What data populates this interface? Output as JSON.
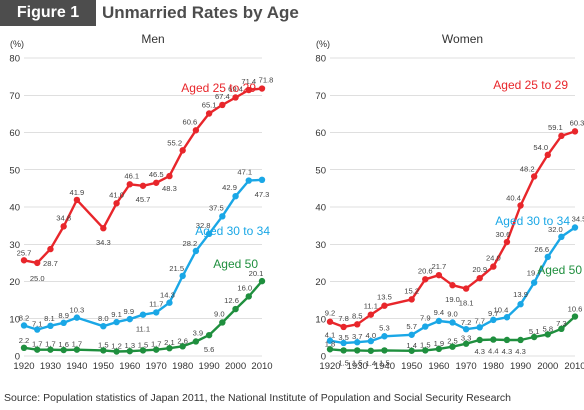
{
  "header": {
    "figure_label": "Figure 1",
    "title": "Unmarried Rates by Age"
  },
  "source": "Source: Population statistics of Japan 2011, the National Institute of  Population and Social Security Research",
  "colors": {
    "red": "#e8262b",
    "blue": "#1aa7e6",
    "green": "#1f8f3e",
    "grid": "#bfbfbf",
    "text": "#333333"
  },
  "chart_data": [
    {
      "type": "line",
      "title": "Men",
      "ylabel": "(%)",
      "ylim": [
        0,
        80
      ],
      "yticks": [
        "0",
        "10",
        "20",
        "30",
        "40",
        "50",
        "60",
        "70",
        "80"
      ],
      "xlim": [
        1920,
        2010
      ],
      "xticks": [
        "1920",
        "1930",
        "1940",
        "1950",
        "1960",
        "1970",
        "1980",
        "1990",
        "2000",
        "2010"
      ],
      "grid": "horizontal",
      "x": [
        1920,
        1925,
        1930,
        1935,
        1940,
        1950,
        1955,
        1960,
        1965,
        1970,
        1975,
        1980,
        1985,
        1990,
        1995,
        2000,
        2005,
        2010
      ],
      "series": [
        {
          "name": "Aged 25 to 29",
          "color": "red",
          "values": [
            25.7,
            25.0,
            28.7,
            34.8,
            41.9,
            34.3,
            41.0,
            46.1,
            45.7,
            46.5,
            48.3,
            55.2,
            60.6,
            65.1,
            67.4,
            69.4,
            71.4,
            71.8
          ],
          "labels": [
            "25.7",
            "25.0",
            "28.7",
            "34.8",
            "41.9",
            "34.3",
            "41.0",
            "46.1",
            "45.7",
            "46.5",
            "48.3",
            "55.2",
            "60.6",
            "65.1",
            "67.4",
            "69.4",
            "71.4",
            "71.8"
          ]
        },
        {
          "name": "Aged 30 to 34",
          "color": "blue",
          "values": [
            8.2,
            7.1,
            8.1,
            8.9,
            10.3,
            8.0,
            9.1,
            9.9,
            11.1,
            11.7,
            14.3,
            21.5,
            28.2,
            32.8,
            37.5,
            42.9,
            47.1,
            47.3
          ],
          "labels": [
            "8.2",
            "7.1",
            "8.1",
            "8.9",
            "10.3",
            "8.0",
            "9.1",
            "9.9",
            "11.1",
            "11.7",
            "14.3",
            "21.5",
            "28.2",
            "32.8",
            "37.5",
            "42.9",
            "47.1",
            "47.3"
          ]
        },
        {
          "name": "Aged 50",
          "color": "green",
          "values": [
            2.2,
            1.7,
            1.7,
            1.6,
            1.7,
            1.5,
            1.2,
            1.3,
            1.5,
            1.7,
            2.1,
            2.6,
            3.9,
            5.6,
            9.0,
            12.6,
            16.0,
            20.1
          ],
          "labels": [
            "2.2",
            "1.7",
            "1.7",
            "1.6",
            "1.7",
            "1.5",
            "1.2",
            "1.3",
            "1.5",
            "1.7",
            "2.1",
            "2.6",
            "3.9",
            "5.6",
            "9.0",
            "12.6",
            "16.0",
            "20.1"
          ]
        }
      ]
    },
    {
      "type": "line",
      "title": "Women",
      "ylabel": "(%)",
      "ylim": [
        0,
        80
      ],
      "yticks": [
        "0",
        "10",
        "20",
        "30",
        "40",
        "50",
        "60",
        "70",
        "80"
      ],
      "xlim": [
        1920,
        2010
      ],
      "xticks": [
        "1920",
        "1930",
        "1940",
        "1950",
        "1960",
        "1970",
        "1980",
        "1990",
        "2000",
        "2010"
      ],
      "grid": "horizontal",
      "x": [
        1920,
        1925,
        1930,
        1935,
        1940,
        1950,
        1955,
        1960,
        1965,
        1970,
        1975,
        1980,
        1985,
        1990,
        1995,
        2000,
        2005,
        2010
      ],
      "series": [
        {
          "name": "Aged 25 to 29",
          "color": "red",
          "values": [
            9.2,
            7.8,
            8.5,
            11.1,
            13.5,
            15.2,
            20.6,
            21.7,
            19.0,
            18.1,
            20.9,
            24.0,
            30.6,
            40.4,
            48.2,
            54.0,
            59.1,
            60.3
          ],
          "labels": [
            "9.2",
            "7.8",
            "8.5",
            "11.1",
            "13.5",
            "15.2",
            "20.6",
            "21.7",
            "19.0",
            "18.1",
            "20.9",
            "24.0",
            "30.6",
            "40.4",
            "48.2",
            "54.0",
            "59.1",
            "60.3"
          ]
        },
        {
          "name": "Aged 30 to 34",
          "color": "blue",
          "values": [
            4.1,
            3.5,
            3.7,
            4.0,
            5.3,
            5.7,
            7.9,
            9.4,
            9.0,
            7.2,
            7.7,
            9.7,
            10.4,
            13.9,
            19.7,
            26.6,
            32.0,
            34.5
          ],
          "labels": [
            "4.1",
            "3.5",
            "3.7",
            "4.0",
            "5.3",
            "5.7",
            "7.9",
            "9.4",
            "9.0",
            "7.2",
            "7.7",
            "9.7",
            "10.4",
            "13.9",
            "19.7",
            "26.6",
            "32.0",
            "34.5"
          ]
        },
        {
          "name": "Aged 50",
          "color": "green",
          "values": [
            1.8,
            1.5,
            1.5,
            1.4,
            1.5,
            1.4,
            1.5,
            1.9,
            2.5,
            3.3,
            4.3,
            4.4,
            4.3,
            4.3,
            5.1,
            5.8,
            7.3,
            10.6
          ],
          "labels": [
            "1.8",
            "1.5",
            "1.5",
            "1.4",
            "1.5",
            "1.4",
            "1.5",
            "1.9",
            "2.5",
            "3.3",
            "4.3",
            "4.4",
            "4.3",
            "4.3",
            "5.1",
            "5.8",
            "7.3",
            "10.6"
          ]
        }
      ]
    }
  ]
}
